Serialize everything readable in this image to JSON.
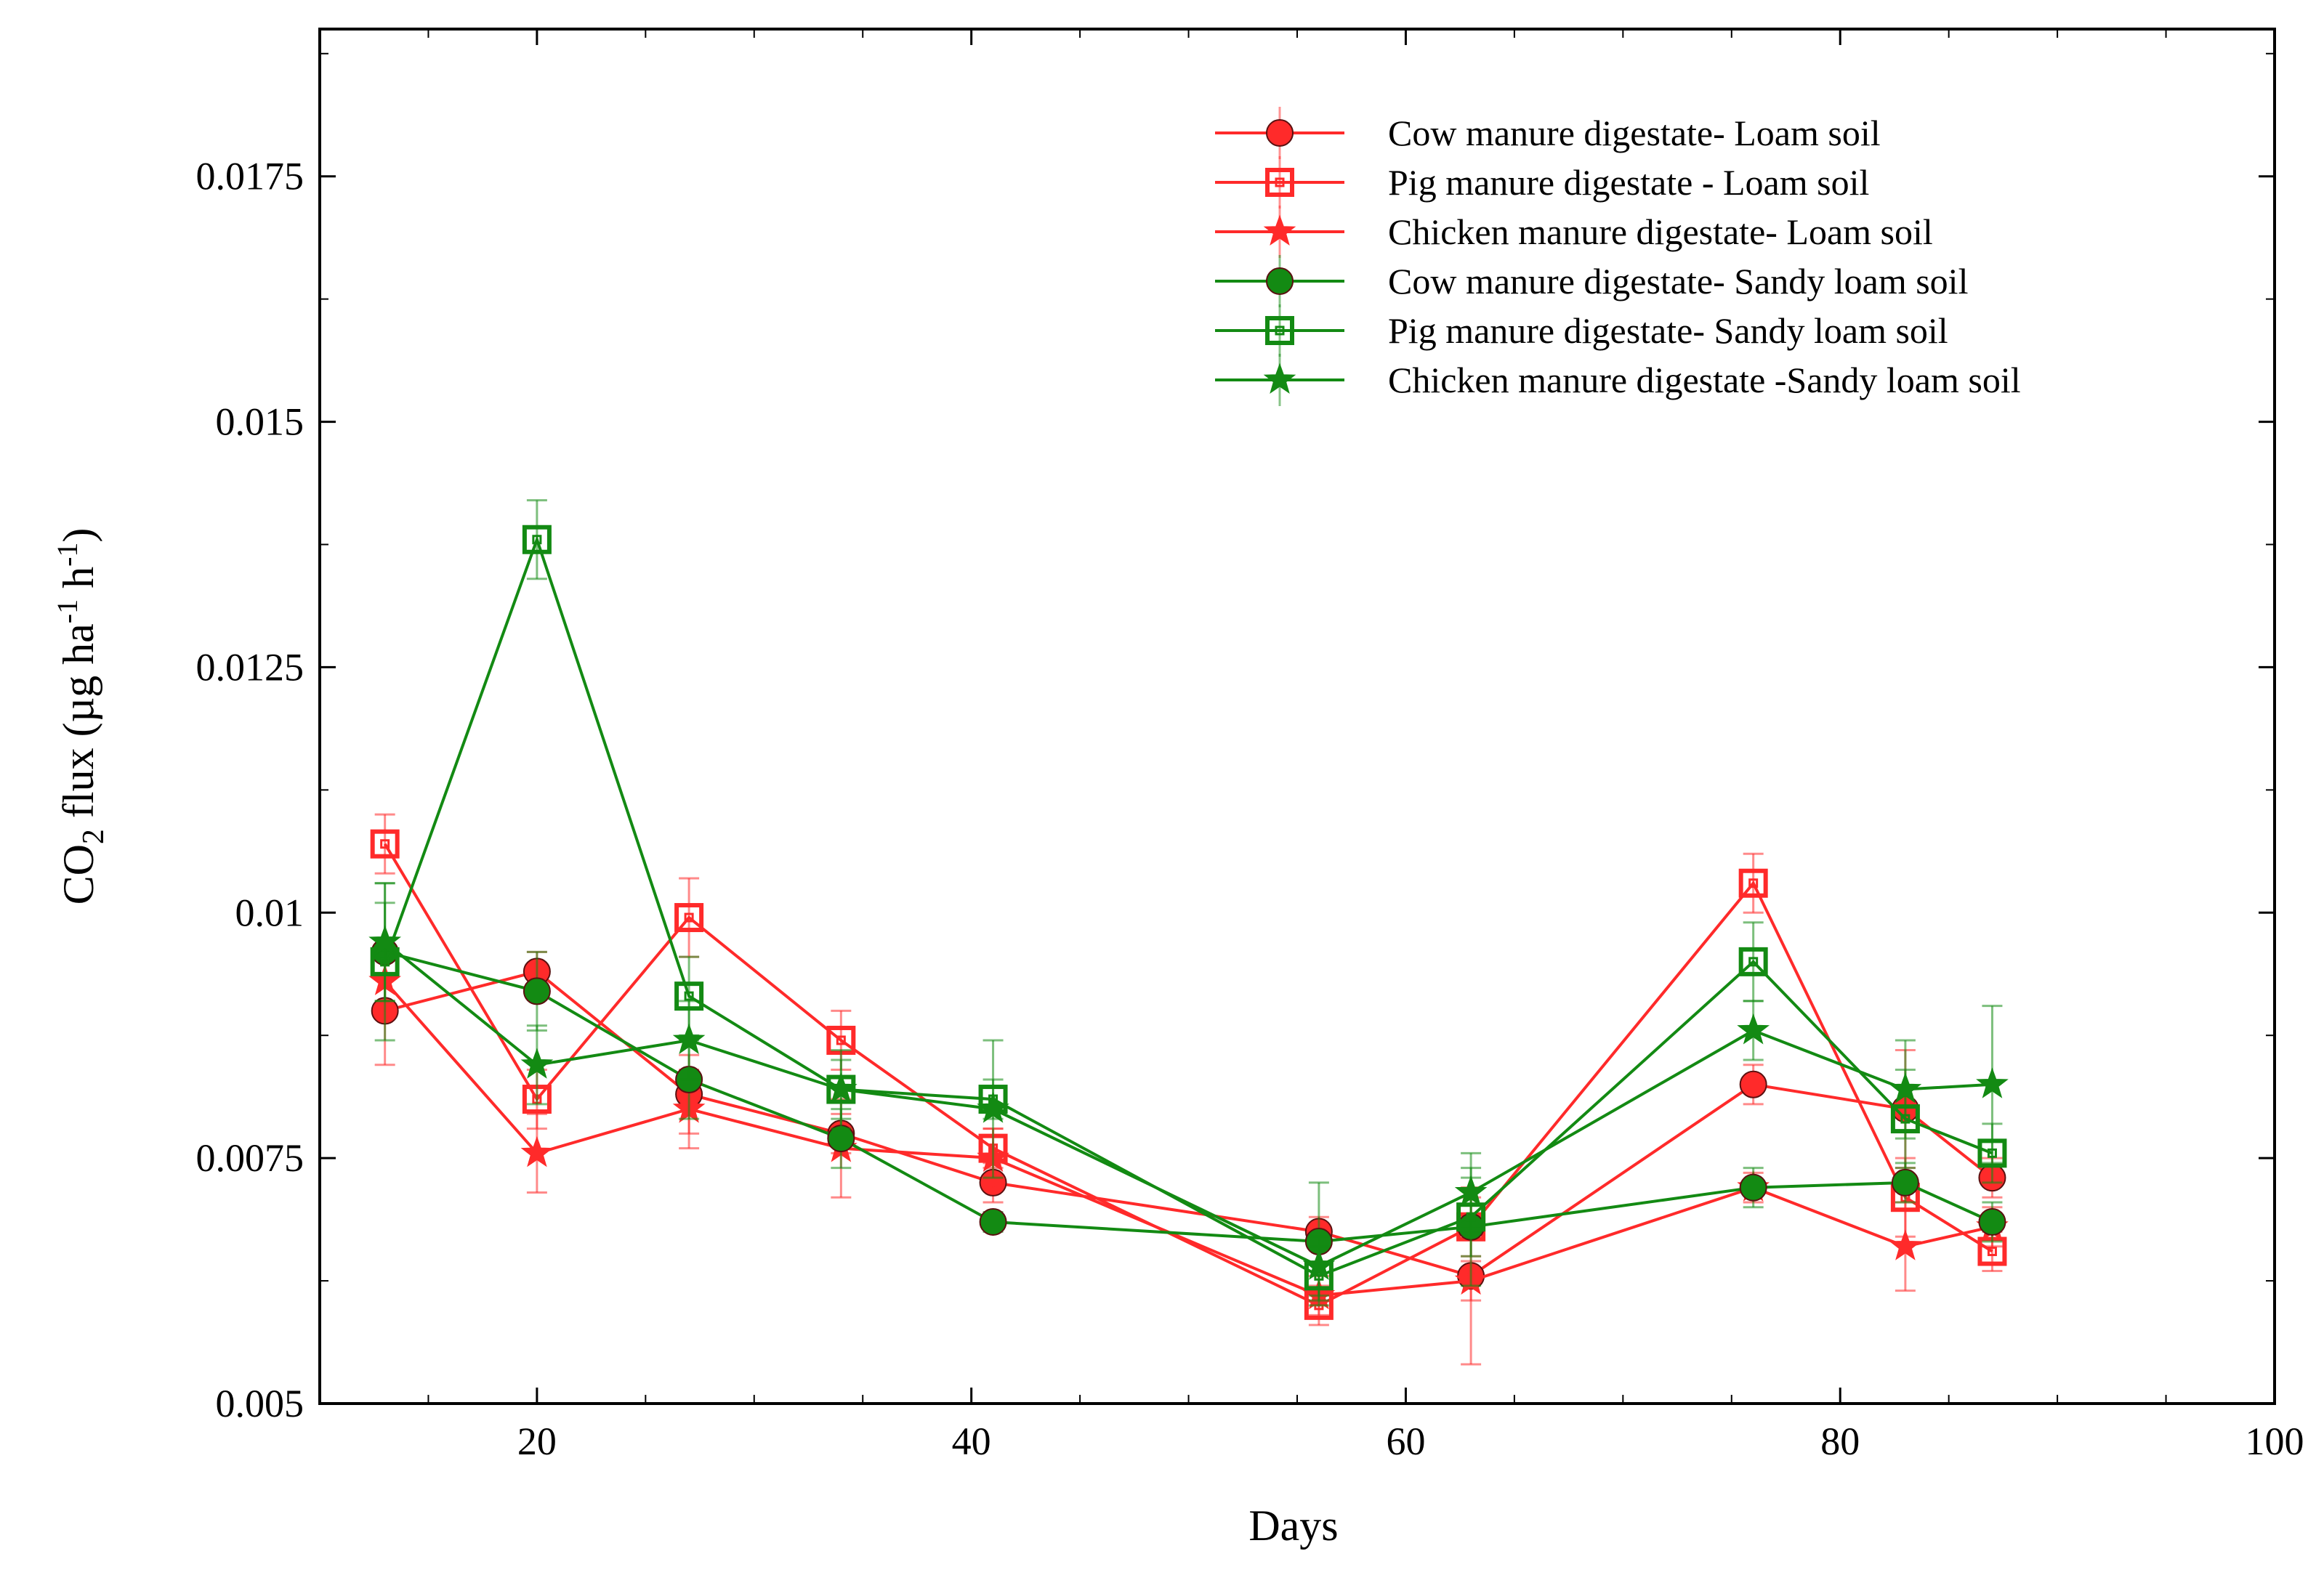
{
  "chart_data": {
    "type": "line",
    "title": "",
    "xlabel": "Days",
    "ylabel_main": "CO",
    "ylabel_sub": "2",
    "ylabel_rest": " flux (µg ha",
    "ylabel_sup1": "-1",
    "ylabel_mid": " h",
    "ylabel_sup2": "-1",
    "ylabel_end": ")",
    "xlim": [
      10,
      100
    ],
    "ylim": [
      0.005,
      0.019
    ],
    "xticks": [
      20,
      40,
      60,
      80,
      100
    ],
    "xtick_labels": [
      "20",
      "40",
      "60",
      "80",
      "100"
    ],
    "yticks": [
      0.005,
      0.0075,
      0.01,
      0.0125,
      0.015,
      0.0175
    ],
    "ytick_labels": [
      "0.005",
      "0.0075",
      "0.01",
      "0.0125",
      "0.015",
      "0.0175"
    ],
    "legend_position": "top-right",
    "x": [
      13,
      20,
      27,
      34,
      41,
      56,
      63,
      76,
      83,
      87
    ],
    "series": [
      {
        "name": "Cow manure digestate- Loam soil",
        "color": "#ff2a2a",
        "marker": "circle",
        "values": [
          0.009,
          0.0094,
          0.00815,
          0.00775,
          0.00725,
          0.00675,
          0.0063,
          0.00825,
          0.008,
          0.0073
        ],
        "errors": [
          0.00055,
          0.0002,
          0.0004,
          0.0002,
          0.0002,
          0.00015,
          0.0009,
          0.0002,
          0.0006,
          0.0002
        ]
      },
      {
        "name": "Pig manure digestate - Loam soil",
        "color": "#ff2a2a",
        "marker": "square",
        "values": [
          0.0107,
          0.0081,
          0.00995,
          0.0087,
          0.0076,
          0.006,
          0.0068,
          0.0103,
          0.0071,
          0.00655
        ],
        "errors": [
          0.0003,
          0.0003,
          0.0004,
          0.0003,
          0.0002,
          0.0002,
          0.0003,
          0.0003,
          0.0004,
          0.0002
        ]
      },
      {
        "name": "Chicken manure digestate- Loam soil",
        "color": "#ff2a2a",
        "marker": "star",
        "values": [
          0.0093,
          0.00755,
          0.008,
          0.0076,
          0.0075,
          0.0061,
          0.00625,
          0.0072,
          0.0066,
          0.0068
        ],
        "errors": [
          0.0003,
          0.0004,
          0.0004,
          0.0005,
          0.0003,
          0.0002,
          0.0002,
          0.00015,
          0.00045,
          0.0002
        ]
      },
      {
        "name": "Cow manure digestate- Sandy loam soil",
        "color": "#138a13",
        "marker": "circle",
        "values": [
          0.0096,
          0.0092,
          0.0083,
          0.0077,
          0.00685,
          0.00665,
          0.0068,
          0.0072,
          0.00725,
          0.00685
        ],
        "errors": [
          0.0005,
          0.0004,
          0.0004,
          0.0003,
          0.0001,
          0.0006,
          0.0006,
          0.0002,
          0.0002,
          0.0002
        ]
      },
      {
        "name": "Pig manure digestate- Sandy loam soil",
        "color": "#138a13",
        "marker": "square",
        "values": [
          0.0095,
          0.0138,
          0.00915,
          0.0082,
          0.0081,
          0.0063,
          0.0069,
          0.0095,
          0.0079,
          0.00755
        ],
        "errors": [
          0.0008,
          0.0004,
          0.0004,
          0.0003,
          0.0002,
          0.0003,
          0.0004,
          0.0004,
          0.0005,
          0.0003
        ]
      },
      {
        "name": "Chicken manure digestate -Sandy loam soil",
        "color": "#138a13",
        "marker": "star",
        "values": [
          0.0097,
          0.00845,
          0.0087,
          0.0082,
          0.008,
          0.0064,
          0.00715,
          0.0088,
          0.0082,
          0.00825
        ],
        "errors": [
          0.0006,
          0.0004,
          0.0004,
          0.0004,
          0.0007,
          0.0003,
          0.0004,
          0.0003,
          0.0005,
          0.0008
        ]
      }
    ]
  }
}
